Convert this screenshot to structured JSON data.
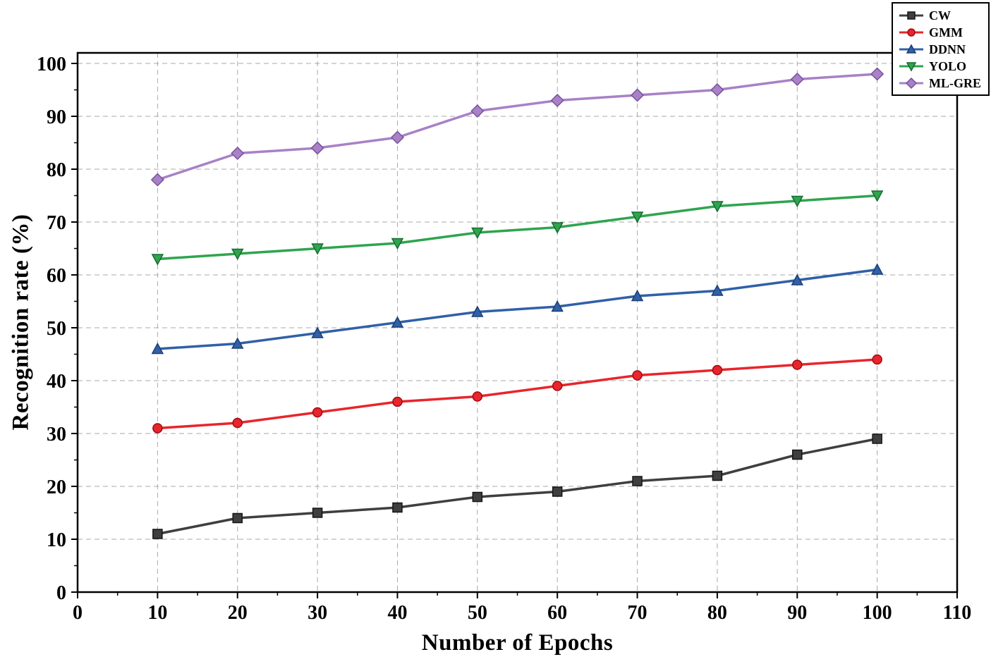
{
  "chart_data": {
    "type": "line",
    "title": "",
    "xlabel": "Number of Epochs",
    "ylabel": "Recognition rate (%)",
    "xlim": [
      0,
      110
    ],
    "ylim": [
      0,
      100
    ],
    "x_ticks": [
      0,
      10,
      20,
      30,
      40,
      50,
      60,
      70,
      80,
      90,
      100,
      110
    ],
    "y_ticks": [
      0,
      10,
      20,
      30,
      40,
      50,
      60,
      70,
      80,
      90,
      100
    ],
    "grid": "dashed major gridlines, x and y",
    "grid_color": "#a8a8a8",
    "legend_position": "top-right",
    "x": [
      10,
      20,
      30,
      40,
      50,
      60,
      70,
      80,
      90,
      100
    ],
    "series": [
      {
        "name": "CW",
        "marker": "square",
        "color": "#3f3f3f",
        "edge": "#151515",
        "values": [
          11,
          14,
          15,
          16,
          18,
          19,
          21,
          22,
          26,
          29
        ]
      },
      {
        "name": "GMM",
        "marker": "circle",
        "color": "#e8252c",
        "edge": "#9e0b10",
        "values": [
          31,
          32,
          34,
          36,
          37,
          39,
          41,
          42,
          43,
          44
        ]
      },
      {
        "name": "DDNN",
        "marker": "triangle-up",
        "color": "#3060a8",
        "edge": "#1d3f74",
        "values": [
          46,
          47,
          49,
          51,
          53,
          54,
          56,
          57,
          59,
          61
        ]
      },
      {
        "name": "YOLO",
        "marker": "triangle-down",
        "color": "#2fa44e",
        "edge": "#176b30",
        "values": [
          63,
          64,
          65,
          66,
          68,
          69,
          71,
          73,
          74,
          75
        ]
      },
      {
        "name": "ML-GRE",
        "marker": "diamond",
        "color": "#a881c6",
        "edge": "#77529b",
        "values": [
          78,
          83,
          84,
          86,
          91,
          93,
          94,
          95,
          97,
          98
        ]
      }
    ]
  }
}
